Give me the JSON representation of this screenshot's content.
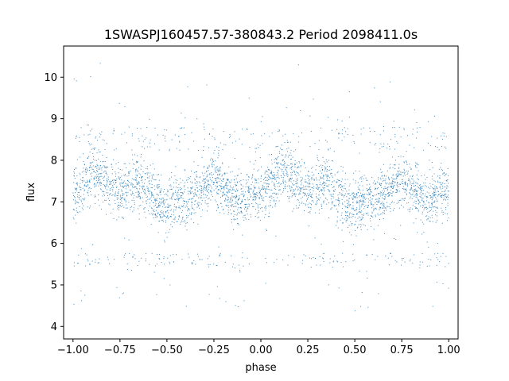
{
  "chart_data": {
    "type": "scatter",
    "title": "1SWASPJ160457.57-380843.2 Period 2098411.0s",
    "xlabel": "phase",
    "ylabel": "flux",
    "xlim": [
      -1.05,
      1.05
    ],
    "ylim": [
      3.7,
      10.75
    ],
    "xticks": [
      -1.0,
      -0.75,
      -0.5,
      -0.25,
      0.0,
      0.25,
      0.5,
      0.75,
      1.0
    ],
    "xtick_labels": [
      "−1.00",
      "−0.75",
      "−0.50",
      "−0.25",
      "0.00",
      "0.25",
      "0.50",
      "0.75",
      "1.00"
    ],
    "yticks": [
      4,
      5,
      6,
      7,
      8,
      9,
      10
    ],
    "ytick_labels": [
      "4",
      "5",
      "6",
      "7",
      "8",
      "9",
      "10"
    ],
    "grid": false,
    "marker_color": "#1f77b4",
    "series": [
      {
        "x": [
          -1.0,
          -0.95,
          -0.9,
          -0.85,
          -0.8,
          -0.75,
          -0.7,
          -0.65,
          -0.6,
          -0.55,
          -0.5,
          -0.45,
          -0.4,
          -0.35,
          -0.3,
          -0.25,
          -0.2,
          -0.15,
          -0.1,
          -0.05,
          0.0,
          0.05,
          0.1,
          0.15,
          0.2,
          0.25,
          0.3,
          0.35,
          0.4,
          0.45,
          0.5,
          0.55,
          0.6,
          0.65,
          0.7,
          0.75,
          0.8,
          0.85,
          0.9,
          0.95,
          1.0
        ],
        "y": [
          7.2,
          7.4,
          7.8,
          7.6,
          7.5,
          7.2,
          7.3,
          7.5,
          7.2,
          7.0,
          6.9,
          7.1,
          7.0,
          7.2,
          7.4,
          7.6,
          7.3,
          7.1,
          7.0,
          7.3,
          7.2,
          7.4,
          7.8,
          7.6,
          7.5,
          7.2,
          7.3,
          7.5,
          7.2,
          7.0,
          6.9,
          7.1,
          7.0,
          7.2,
          7.4,
          7.6,
          7.3,
          7.1,
          7.0,
          7.3,
          7.2
        ]
      }
    ]
  }
}
